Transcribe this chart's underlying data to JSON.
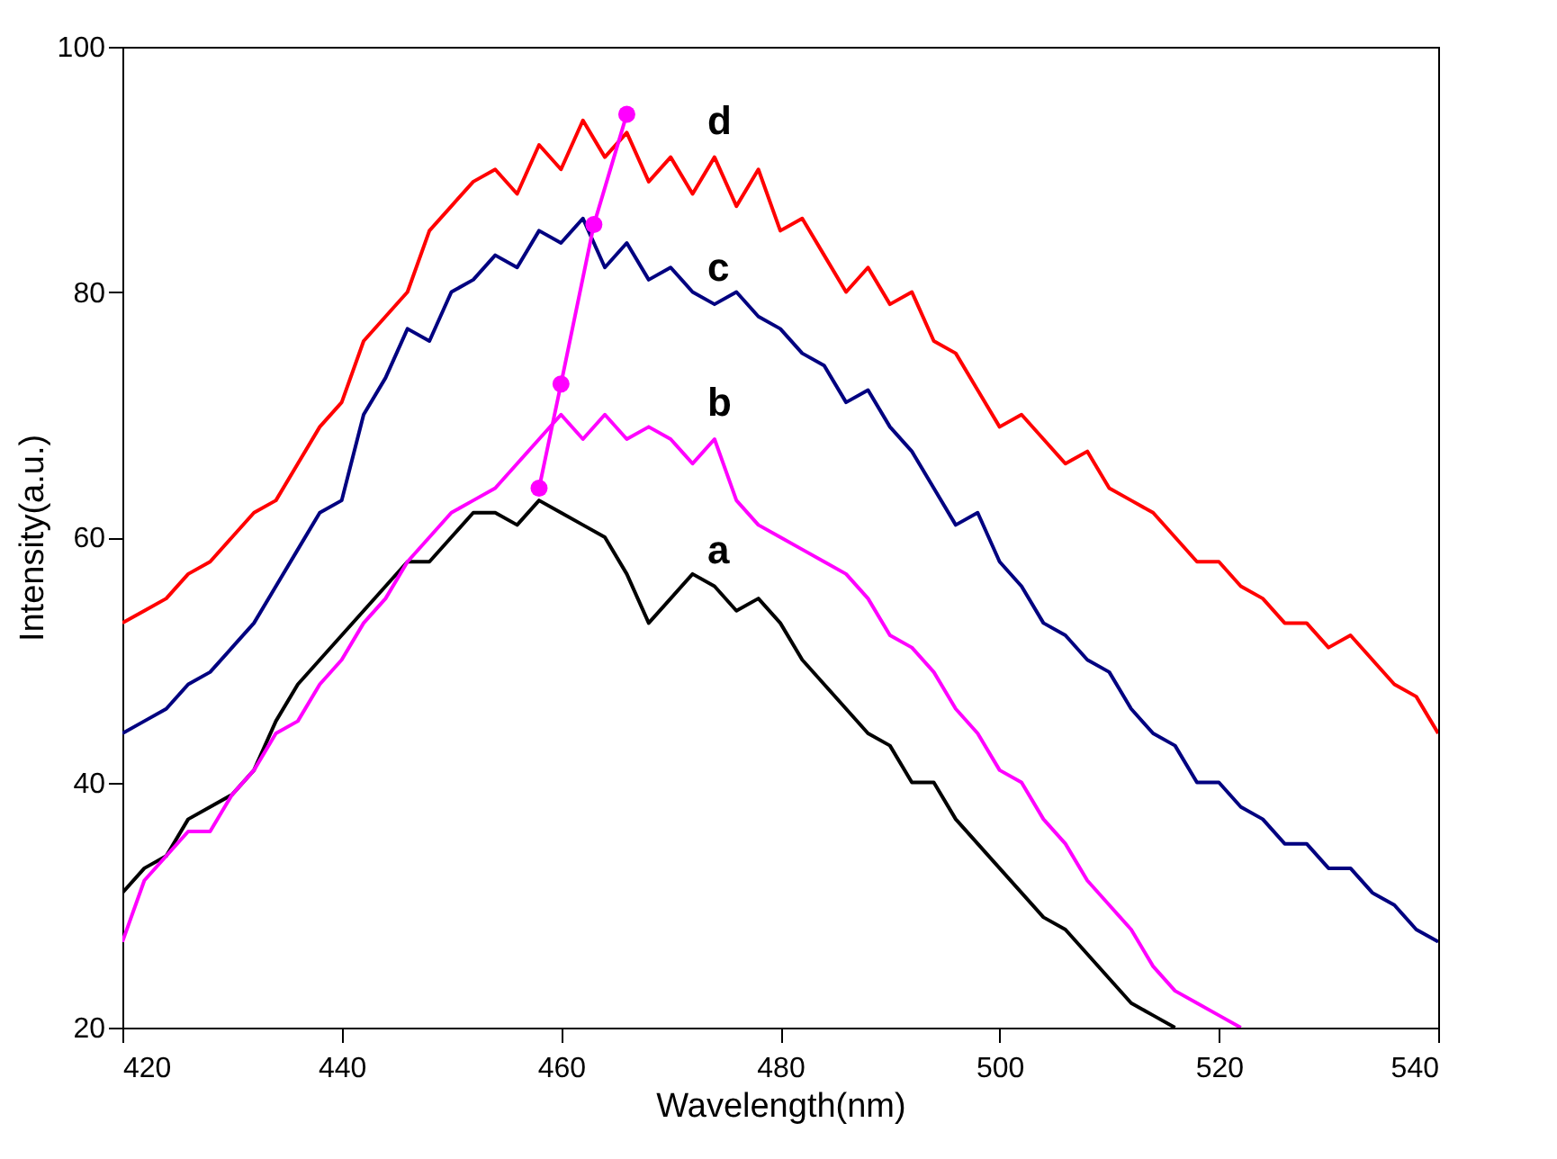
{
  "chart_data": {
    "type": "line",
    "xlabel": "Wavelength(nm)",
    "ylabel": "Intensity(a.u.)",
    "x": [
      420,
      422,
      424,
      426,
      428,
      430,
      432,
      434,
      436,
      438,
      440,
      442,
      444,
      446,
      448,
      450,
      452,
      454,
      456,
      458,
      460,
      462,
      464,
      466,
      468,
      470,
      472,
      474,
      476,
      478,
      480,
      482,
      484,
      486,
      488,
      490,
      492,
      494,
      496,
      498,
      500,
      502,
      504,
      506,
      508,
      510,
      512,
      514,
      516,
      518,
      520,
      522,
      524,
      526,
      528,
      530,
      532,
      534,
      536,
      538,
      540
    ],
    "series": [
      {
        "name": "a",
        "color": "#000000",
        "values": [
          31,
          33,
          34,
          37,
          38,
          39,
          41,
          45,
          48,
          50,
          52,
          54,
          56,
          58,
          58,
          60,
          62,
          62,
          61,
          63,
          62,
          61,
          60,
          57,
          53,
          55,
          57,
          56,
          54,
          55,
          53,
          50,
          48,
          46,
          44,
          43,
          40,
          40,
          37,
          35,
          33,
          31,
          29,
          28,
          26,
          24,
          22,
          21,
          20,
          null,
          null,
          null,
          null,
          null,
          null,
          null,
          null,
          null,
          null,
          null,
          null
        ]
      },
      {
        "name": "b",
        "color": "#ff00ff",
        "values": [
          27,
          32,
          34,
          36,
          36,
          39,
          41,
          44,
          45,
          48,
          50,
          53,
          55,
          58,
          60,
          62,
          63,
          64,
          66,
          68,
          70,
          68,
          70,
          68,
          69,
          68,
          66,
          68,
          63,
          61,
          60,
          59,
          58,
          57,
          55,
          52,
          51,
          49,
          46,
          44,
          41,
          40,
          37,
          35,
          32,
          30,
          28,
          25,
          23,
          22,
          21,
          20,
          null,
          null,
          null,
          null,
          null,
          null,
          null,
          null,
          null
        ]
      },
      {
        "name": "c",
        "color": "#000080",
        "values": [
          44,
          45,
          46,
          48,
          49,
          51,
          53,
          56,
          59,
          62,
          63,
          70,
          73,
          77,
          76,
          80,
          81,
          83,
          82,
          85,
          84,
          86,
          82,
          84,
          81,
          82,
          80,
          79,
          80,
          78,
          77,
          75,
          74,
          71,
          72,
          69,
          67,
          64,
          61,
          62,
          58,
          56,
          53,
          52,
          50,
          49,
          46,
          44,
          43,
          40,
          40,
          38,
          37,
          35,
          35,
          33,
          33,
          31,
          30,
          28,
          27
        ]
      },
      {
        "name": "d",
        "color": "#ff0000",
        "values": [
          53,
          54,
          55,
          57,
          58,
          60,
          62,
          63,
          66,
          69,
          71,
          76,
          78,
          80,
          85,
          87,
          89,
          90,
          88,
          92,
          90,
          94,
          91,
          93,
          89,
          91,
          88,
          91,
          87,
          90,
          85,
          86,
          83,
          80,
          82,
          79,
          80,
          76,
          75,
          72,
          69,
          70,
          68,
          66,
          67,
          64,
          63,
          62,
          60,
          58,
          58,
          56,
          55,
          53,
          53,
          51,
          52,
          50,
          48,
          47,
          44
        ]
      },
      {
        "type": "line",
        "color": "#ff00ff",
        "marker": "circle",
        "x": [
          458,
          460,
          463,
          466
        ],
        "values": [
          64,
          72.5,
          85.5,
          94.5
        ]
      }
    ],
    "xlim": [
      420,
      540
    ],
    "xticks": [
      420,
      440,
      460,
      480,
      500,
      520,
      540
    ],
    "ylim": [
      20,
      100
    ],
    "yticks": [
      20,
      40,
      60,
      80,
      100
    ],
    "grid": false
  }
}
